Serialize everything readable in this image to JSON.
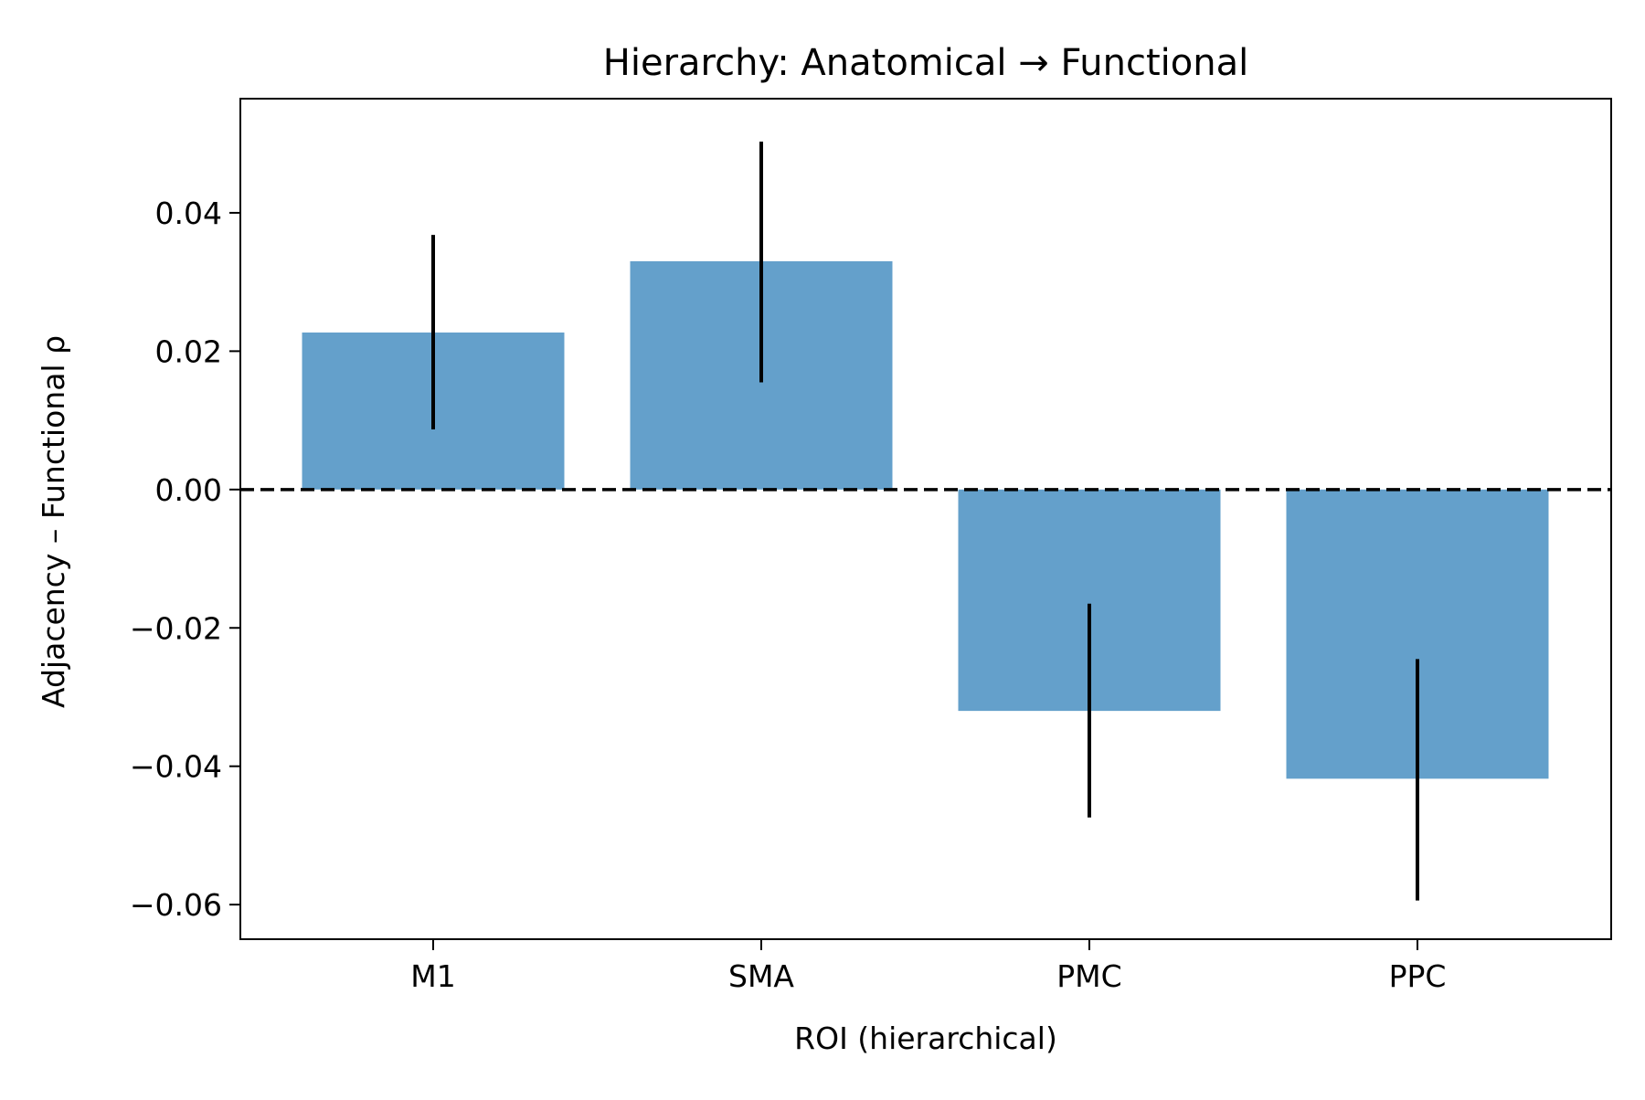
{
  "chart_data": {
    "type": "bar",
    "title": "Hierarchy: Anatomical → Functional",
    "xlabel": "ROI (hierarchical)",
    "ylabel": "Adjacency – Functional ρ",
    "categories": [
      "M1",
      "SMA",
      "PMC",
      "PPC"
    ],
    "values": [
      0.0227,
      0.033,
      -0.032,
      -0.0418
    ],
    "error_bars": [
      {
        "low": 0.0087,
        "high": 0.0368
      },
      {
        "low": 0.0155,
        "high": 0.0503
      },
      {
        "low": -0.0474,
        "high": -0.0165
      },
      {
        "low": -0.0594,
        "high": -0.0245
      }
    ],
    "ylim": [
      -0.065,
      0.0565
    ],
    "yticks": [
      0.04,
      0.02,
      0.0,
      -0.02,
      -0.04,
      -0.06
    ],
    "ytick_labels": [
      "0.04",
      "0.02",
      "0.00",
      "−0.02",
      "−0.04",
      "−0.06"
    ],
    "reference_line": {
      "y": 0.0,
      "style": "dashed",
      "color": "#000000"
    },
    "bar_color": "#64a0cb",
    "grid": false,
    "legend": "none"
  }
}
